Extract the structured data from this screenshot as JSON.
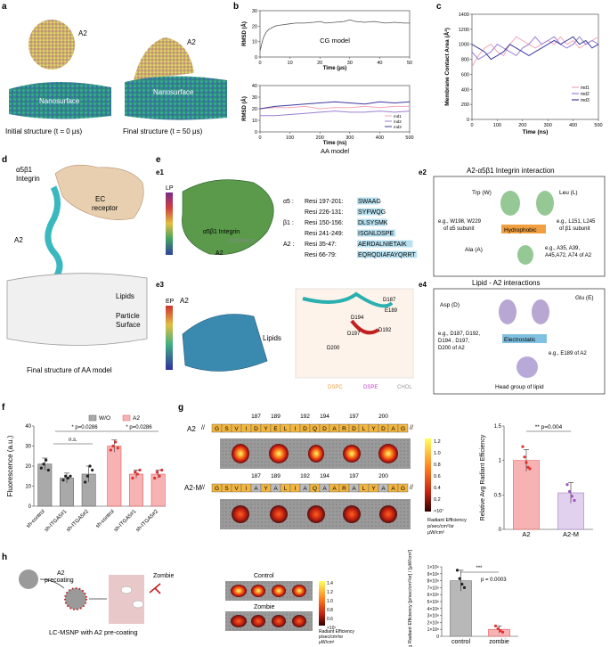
{
  "panel_labels": {
    "a": "a",
    "b": "b",
    "c": "c",
    "d": "d",
    "e": "e",
    "e1": "e1",
    "e2": "e2",
    "e3": "e3",
    "e4": "e4",
    "f": "f",
    "g": "g",
    "h": "h"
  },
  "panel_a": {
    "a2_left": "A2",
    "a2_right": "A2",
    "nano_left": "Nanosurface",
    "nano_right": "Nanosurface",
    "caption_left": "Initial structure (t = 0 μs)",
    "caption_right": "Final structure (t = 50 μs)"
  },
  "panel_d": {
    "integrin": "α5β1",
    "integrin2": "Integrin",
    "a2": "A2",
    "ec1": "EC",
    "ec2": "receptor",
    "lipids": "Lipids",
    "particle1": "Particle",
    "particle2": "Surface",
    "caption": "Final structure of AA model"
  },
  "panel_e1": {
    "scale": "LP",
    "integrin": "α5β1 Integrin",
    "a2": "A2",
    "interface": "Interface",
    "residues": [
      {
        "prefix": "α5 : ",
        "range": "Resi 197-201: ",
        "seq": "SWAAG"
      },
      {
        "prefix": "",
        "range": "Resi 226-131: ",
        "seq": "SYFWQG"
      },
      {
        "prefix": "β1 : ",
        "range": "Resi 150-156: ",
        "seq": "DLSYSMK"
      },
      {
        "prefix": "",
        "range": "Resi 241-249: ",
        "seq": "ISGNLDSPE"
      },
      {
        "prefix": "A2 : ",
        "range": "Resi 35-47: ",
        "seq": "AERDALNIETAIK"
      },
      {
        "prefix": "",
        "range": "Resi 66-79: ",
        "seq": "EQRQDIAFAYQRRT"
      }
    ]
  },
  "panel_e3": {
    "scale": "EP",
    "a2": "A2",
    "lipids": "Lipids",
    "residues": [
      "D187",
      "E189",
      "D194",
      "D192",
      "D197",
      "D200"
    ],
    "legend": [
      "DSPC",
      "DSPE",
      "CHOL"
    ]
  },
  "panel_e2": {
    "title": "A2-α5β1 Integrin interaction",
    "trp": "Trp (W)",
    "leu": "Leu (L)",
    "ala": "Ala (A)",
    "hydro": "Hydrophobic",
    "note1a": "e.g., W198, W229",
    "note1b": "of α5 subunit",
    "note2a": "e.g., L151, L245",
    "note2b": "of β1 subunit",
    "note3a": "e.g., A35, A39,",
    "note3b": "A45,A72, A74 of A2"
  },
  "panel_e4": {
    "title": "Lipid - A2 interactions",
    "asp": "Asp (D)",
    "glu": "Glu (E)",
    "elec": "Electrostatic",
    "note1a": "e.g., D187, D192,",
    "note1b": "D194 , D197,",
    "note1c": "D200 of A2",
    "note2": "e.g., E189 of A2",
    "head": "Head group of lipid"
  },
  "colors": {
    "a2": "#f08080",
    "a2m": "#c8a2dc",
    "wo": "#a9a9a9",
    "cyan": "#5bc8d0",
    "md1": "#f4a7b9",
    "md2": "#9b7fd4",
    "md3": "#3a3aa0",
    "hl": "#7ec8e3"
  },
  "chart_data": [
    {
      "id": "b_cg",
      "type": "line",
      "title": "CG model",
      "xlabel": "Time (μs)",
      "ylabel": "RMSD (Å)",
      "xlim": [
        0,
        50
      ],
      "ylim": [
        0,
        30
      ],
      "xticks": [
        0,
        10,
        20,
        30,
        40,
        50
      ],
      "yticks": [
        0,
        10,
        20,
        30
      ],
      "series": [
        {
          "x": [
            0,
            1,
            2,
            3,
            4,
            5,
            6,
            8,
            10,
            12,
            15,
            18,
            20,
            22,
            25,
            28,
            30,
            32,
            35,
            38,
            40,
            42,
            45,
            48,
            50
          ],
          "values": [
            4,
            12,
            16,
            18,
            19,
            20,
            20.5,
            21,
            21.5,
            22,
            22,
            22.5,
            23,
            22,
            22.5,
            23,
            24,
            23,
            22.5,
            23,
            22.5,
            22,
            22.5,
            22,
            22
          ]
        }
      ]
    },
    {
      "id": "b_aa",
      "type": "line",
      "title": "AA model",
      "xlabel": "Time (ns)",
      "ylabel": "RMSD (Å)",
      "xlim": [
        0,
        500
      ],
      "ylim": [
        0,
        40
      ],
      "xticks": [
        0,
        100,
        200,
        300,
        400,
        500
      ],
      "yticks": [
        0,
        10,
        20,
        30,
        40
      ],
      "series": [
        {
          "name": "md1",
          "values": [
            20,
            21,
            21,
            22,
            20,
            21,
            21,
            22,
            21,
            22,
            22
          ]
        },
        {
          "name": "md2",
          "values": [
            14,
            14,
            15,
            16,
            17,
            18,
            17,
            17,
            18,
            17,
            18
          ]
        },
        {
          "name": "md3",
          "values": [
            20,
            22,
            23,
            24,
            25,
            26,
            25,
            24,
            26,
            25,
            26
          ]
        }
      ],
      "x": [
        0,
        50,
        100,
        150,
        200,
        250,
        300,
        350,
        400,
        450,
        500
      ]
    },
    {
      "id": "c",
      "type": "line",
      "xlabel": "Time (ns)",
      "ylabel": "Membrane Contact Area (Å²)",
      "xlim": [
        0,
        500
      ],
      "ylim": [
        0,
        1400
      ],
      "xticks": [
        0,
        100,
        200,
        300,
        400,
        500
      ],
      "yticks": [
        0,
        200,
        400,
        600,
        800,
        1000,
        1200,
        1400
      ],
      "x": [
        0,
        25,
        50,
        75,
        100,
        125,
        150,
        175,
        200,
        225,
        250,
        275,
        300,
        325,
        350,
        375,
        400,
        425,
        450,
        475,
        500
      ],
      "series": [
        {
          "name": "md1",
          "values": [
            700,
            850,
            950,
            1000,
            900,
            850,
            1000,
            1100,
            1050,
            1000,
            950,
            1000,
            1050,
            1000,
            1100,
            1000,
            1050,
            950,
            1000,
            1050,
            1100
          ]
        },
        {
          "name": "md2",
          "values": [
            900,
            800,
            850,
            900,
            1000,
            950,
            900,
            850,
            950,
            1000,
            1100,
            1000,
            1050,
            1100,
            1000,
            950,
            1000,
            1100,
            1000,
            1050,
            1000
          ]
        },
        {
          "name": "md3",
          "values": [
            1000,
            950,
            900,
            800,
            850,
            900,
            1000,
            950,
            900,
            850,
            900,
            950,
            1000,
            1050,
            1000,
            1050,
            1100,
            1000,
            1050,
            950,
            1000
          ]
        }
      ],
      "legend": "right"
    },
    {
      "id": "f",
      "type": "bar",
      "ylabel": "Fluorescence (a.u.)",
      "ylim": [
        0,
        40
      ],
      "yticks": [
        0,
        10,
        20,
        30,
        40
      ],
      "categories": [
        "sh-control",
        "sh-ITGA5#1",
        "sh-ITGA5#2",
        "sh-control",
        "sh-ITGA5#1",
        "sh-ITGA5#2"
      ],
      "series": [
        {
          "name": "W/O",
          "values": [
            21,
            14,
            16,
            null,
            null,
            null
          ]
        },
        {
          "name": "A2",
          "values": [
            null,
            null,
            null,
            30,
            16,
            16
          ]
        }
      ],
      "errors": [
        3,
        2.5,
        4,
        3,
        2,
        2
      ],
      "points": [
        [
          19,
          21,
          23,
          18
        ],
        [
          13,
          15,
          14,
          15
        ],
        [
          12,
          15,
          20,
          18
        ],
        [
          28,
          30,
          32,
          29
        ],
        [
          14,
          17,
          16,
          18
        ],
        [
          14,
          17,
          15,
          18
        ]
      ],
      "annotations": [
        "n.s.",
        "* p=0.0286",
        "* p=0.0286"
      ]
    },
    {
      "id": "g",
      "type": "bar",
      "ylabel": "Relative Avg Radiant Efficiency",
      "ylim": [
        0,
        1.5
      ],
      "yticks": [
        0,
        0.5,
        1.0,
        1.5
      ],
      "categories": [
        "A2",
        "A2-M"
      ],
      "values": [
        1.0,
        0.53
      ],
      "errors": [
        0.16,
        0.15
      ],
      "points": [
        [
          1.2,
          1.05,
          0.97,
          0.9,
          0.88
        ],
        [
          0.65,
          0.55,
          0.48,
          0.42
        ]
      ],
      "annotations": [
        "** p=0.004"
      ]
    },
    {
      "id": "h",
      "type": "bar",
      "ylabel": "Avg Radiant Efficiency [p/sec/cm²/sr] / [μW/cm²]",
      "ylim": [
        0,
        1.0
      ],
      "yticks_labels": [
        "0",
        "1×10⁸",
        "2×10⁸",
        "3×10⁸",
        "4×10⁸",
        "5×10⁸",
        "6×10⁸",
        "7×10⁸",
        "8×10⁸",
        "9×10⁸",
        "1×10⁹"
      ],
      "categories": [
        "control",
        "zombie"
      ],
      "values": [
        0.8,
        0.1
      ],
      "errors": [
        0.15,
        0.05
      ],
      "points": [
        [
          0.95,
          0.83,
          0.75,
          0.7
        ],
        [
          0.15,
          0.11,
          0.08,
          0.06
        ]
      ],
      "annotations": [
        "***",
        "p = 0.0003"
      ]
    }
  ],
  "panel_f": {
    "legend_wo": "W/O",
    "legend_a2": "A2"
  },
  "panel_g": {
    "a2_label": "A2",
    "a2m_label": "A2-M",
    "seq_a2": [
      "G",
      "S",
      "V",
      "I",
      "D",
      "Y",
      "E",
      "L",
      "I",
      "D",
      "Q",
      "D",
      "A",
      "R",
      "D",
      "L",
      "Y",
      "D",
      "A",
      "G"
    ],
    "seq_a2m": [
      "G",
      "S",
      "V",
      "I",
      "A",
      "Y",
      "A",
      "L",
      "I",
      "A",
      "Q",
      "A",
      "A",
      "R",
      "A",
      "L",
      "Y",
      "A",
      "A",
      "G"
    ],
    "nums": [
      "187",
      "189",
      "192",
      "194",
      "197",
      "200"
    ],
    "scale_ticks": [
      "1.2",
      "1.0",
      "0.8",
      "0.6",
      "0.4",
      "0.2",
      "×10⁷"
    ],
    "scale_caption1": "Radiant Efficiency",
    "scale_caption2": "p/sec/cm²/sr",
    "scale_caption3": "μW/cm²",
    "break": "//"
  },
  "panel_h": {
    "precoat1": "A2",
    "precoat2": "precoating",
    "zombie": "Zombie",
    "caption": "LC-MSNP with A2 pre-coating",
    "control": "Control",
    "zombie2": "Zombie",
    "scale_ticks": [
      "1.4",
      "1.2",
      "1.0",
      "0.8",
      "0.6",
      "×10⁷"
    ],
    "scale_caption1": "Radiant Efficiency",
    "scale_caption2": "p/sec/cm²/sr",
    "scale_caption3": "μW/cm²"
  }
}
